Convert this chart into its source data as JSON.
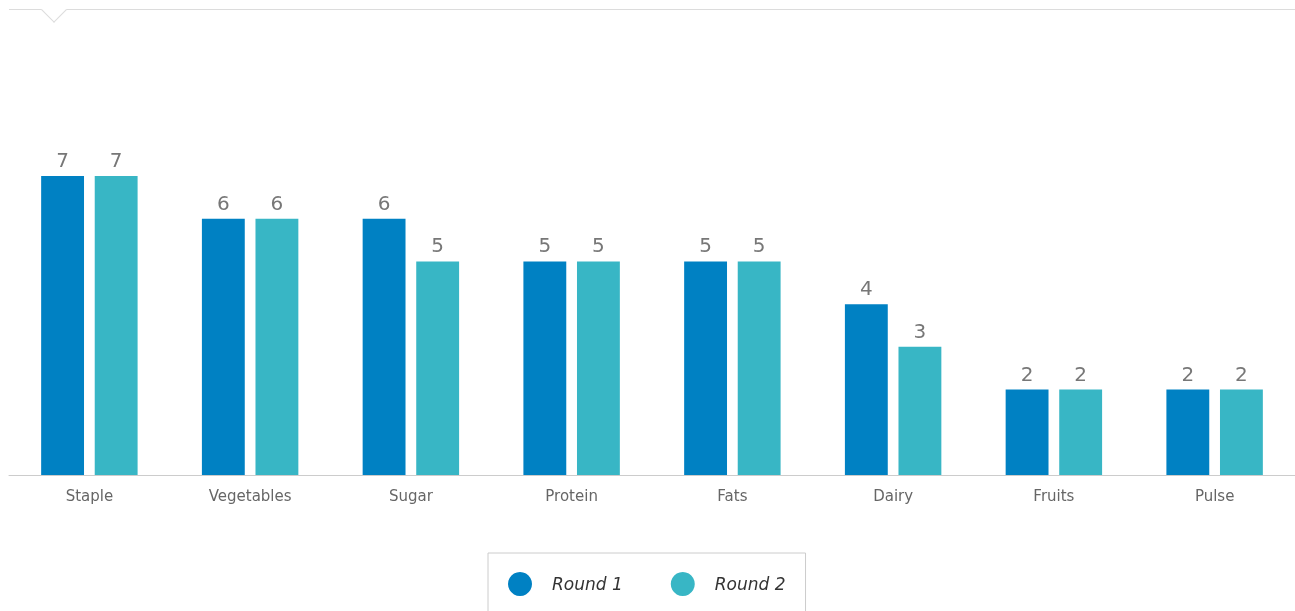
{
  "chart_data": {
    "type": "bar",
    "categories": [
      "Staple",
      "Vegetables",
      "Sugar",
      "Protein",
      "Fats",
      "Dairy",
      "Fruits",
      "Pulse"
    ],
    "series": [
      {
        "name": "Round 1",
        "color": "#0081c3",
        "values": [
          7,
          6,
          6,
          5,
          5,
          4,
          2,
          2
        ]
      },
      {
        "name": "Round 2",
        "color": "#38b6c5",
        "values": [
          7,
          6,
          5,
          5,
          5,
          3,
          2,
          2
        ]
      }
    ],
    "data_labels": true,
    "legend": "bottom",
    "tick_labels": "x"
  }
}
